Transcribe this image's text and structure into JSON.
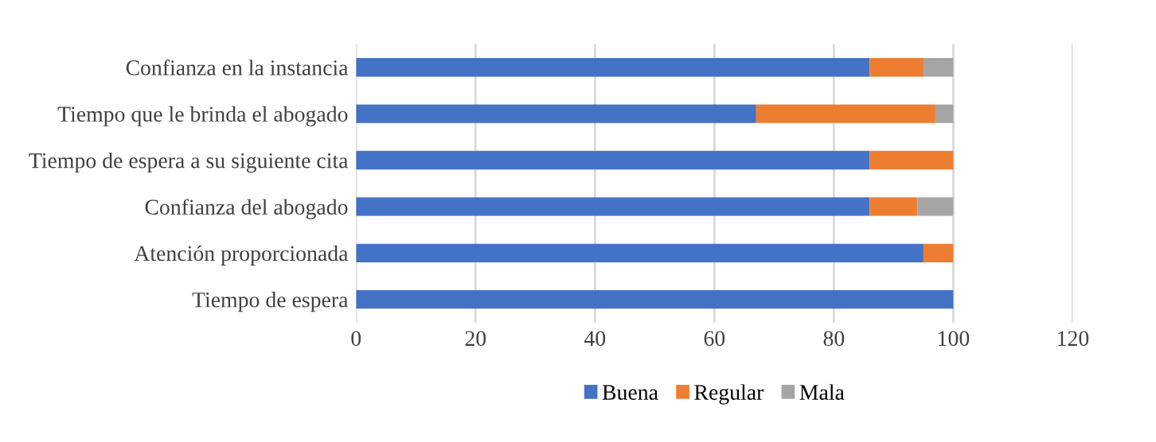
{
  "chart_data": {
    "type": "bar",
    "orientation": "horizontal",
    "stacked": true,
    "categories": [
      "Confianza en la instancia",
      "Tiempo que le brinda el abogado",
      "Tiempo de espera a su siguiente cita",
      "Confianza del abogado",
      "Atención proporcionada",
      "Tiempo de espera"
    ],
    "series": [
      {
        "name": "Buena",
        "color": "#4472c4",
        "values": [
          86,
          67,
          86,
          86,
          95,
          100
        ]
      },
      {
        "name": "Regular",
        "color": "#ed7d31",
        "values": [
          9,
          30,
          14,
          8,
          5,
          0
        ]
      },
      {
        "name": "Mala",
        "color": "#a5a5a5",
        "values": [
          5,
          3,
          0,
          6,
          0,
          0
        ]
      }
    ],
    "xlim": [
      0,
      120
    ],
    "xticks": [
      0,
      20,
      40,
      60,
      80,
      100,
      120
    ],
    "grid": "x",
    "legend": "bottom"
  }
}
